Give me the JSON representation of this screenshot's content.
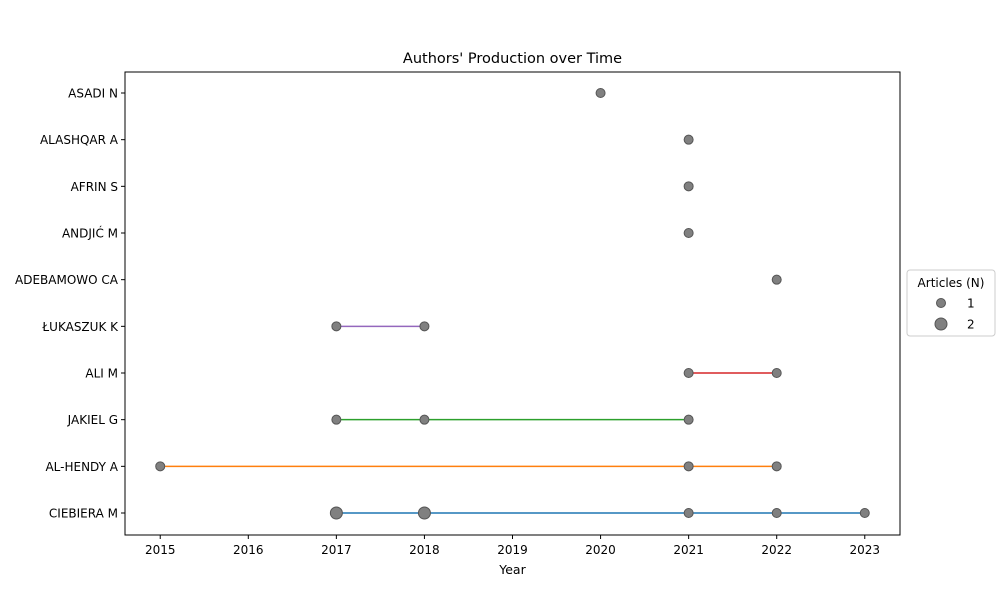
{
  "chart_data": {
    "type": "scatter",
    "title": "Authors' Production over Time",
    "xlabel": "Year",
    "ylabel": "",
    "xlim": [
      2014.6,
      2023.4
    ],
    "xticks": [
      2015,
      2016,
      2017,
      2018,
      2019,
      2020,
      2021,
      2022,
      2023
    ],
    "authors": [
      "CIEBIERA M",
      "AL-HENDY A",
      "JAKIEL G",
      "ALI M",
      "ŁUKASZUK K",
      "ADEBAMOWO CA",
      "ANDJIĆ M",
      "AFRIN S",
      "ALASHQAR A",
      "ASADI N"
    ],
    "series": [
      {
        "author": "CIEBIERA M",
        "color": "#1f77b4",
        "points": [
          {
            "year": 2017,
            "articles": 2
          },
          {
            "year": 2018,
            "articles": 2
          },
          {
            "year": 2021,
            "articles": 1
          },
          {
            "year": 2022,
            "articles": 1
          },
          {
            "year": 2023,
            "articles": 1
          }
        ]
      },
      {
        "author": "AL-HENDY A",
        "color": "#ff7f0e",
        "points": [
          {
            "year": 2015,
            "articles": 1
          },
          {
            "year": 2021,
            "articles": 1
          },
          {
            "year": 2022,
            "articles": 1
          }
        ]
      },
      {
        "author": "JAKIEL G",
        "color": "#2ca02c",
        "points": [
          {
            "year": 2017,
            "articles": 1
          },
          {
            "year": 2018,
            "articles": 1
          },
          {
            "year": 2021,
            "articles": 1
          }
        ]
      },
      {
        "author": "ALI M",
        "color": "#d62728",
        "points": [
          {
            "year": 2021,
            "articles": 1
          },
          {
            "year": 2022,
            "articles": 1
          }
        ]
      },
      {
        "author": "ŁUKASZUK K",
        "color": "#9467bd",
        "points": [
          {
            "year": 2017,
            "articles": 1
          },
          {
            "year": 2018,
            "articles": 1
          }
        ]
      },
      {
        "author": "ADEBAMOWO CA",
        "color": "#8c564b",
        "points": [
          {
            "year": 2022,
            "articles": 1
          }
        ]
      },
      {
        "author": "ANDJIĆ M",
        "color": "#e377c2",
        "points": [
          {
            "year": 2021,
            "articles": 1
          }
        ]
      },
      {
        "author": "AFRIN S",
        "color": "#7f7f7f",
        "points": [
          {
            "year": 2021,
            "articles": 1
          }
        ]
      },
      {
        "author": "ALASHQAR A",
        "color": "#bcbd22",
        "points": [
          {
            "year": 2021,
            "articles": 1
          }
        ]
      },
      {
        "author": "ASADI N",
        "color": "#17becf",
        "points": [
          {
            "year": 2020,
            "articles": 1
          }
        ]
      }
    ],
    "marker_color": "#808080",
    "legend": {
      "title": "Articles (N)",
      "placement": "center-right-outside",
      "entries": [
        {
          "label": "1",
          "articles": 1
        },
        {
          "label": "2",
          "articles": 2
        }
      ]
    }
  }
}
